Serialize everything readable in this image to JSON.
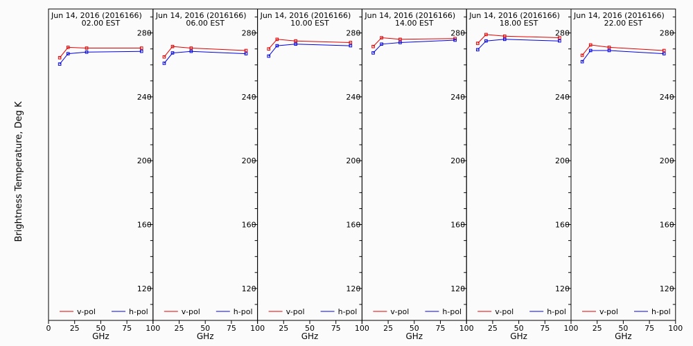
{
  "ylabel": "Brightness Temperature, Deg K",
  "colors": {
    "v_pol": "#e00000",
    "h_pol": "#0000dd",
    "axis": "#000000",
    "background": "#fbfbfb"
  },
  "chart_data": [
    {
      "type": "line",
      "title": "Jun 14, 2016 (2016166)",
      "subtitle": "02.00 EST",
      "xlabel": "GHz",
      "xlim": [
        0,
        100
      ],
      "ylim": [
        100,
        295
      ],
      "xticks": [
        0,
        25,
        50,
        75,
        100
      ],
      "yticks": [
        120,
        160,
        200,
        240,
        280
      ],
      "series": [
        {
          "name": "v-pol",
          "x": [
            10.7,
            18.7,
            36.5,
            89.0
          ],
          "y": [
            264.5,
            271.0,
            270.5,
            270.5
          ]
        },
        {
          "name": "h-pol",
          "x": [
            10.7,
            18.7,
            36.5,
            89.0
          ],
          "y": [
            260.5,
            267.0,
            268.0,
            268.5
          ]
        }
      ]
    },
    {
      "type": "line",
      "title": "Jun 14, 2016 (2016166)",
      "subtitle": "06.00 EST",
      "xlabel": "GHz",
      "xlim": [
        0,
        100
      ],
      "ylim": [
        100,
        295
      ],
      "xticks": [
        25,
        50,
        75,
        100
      ],
      "yticks": [
        120,
        160,
        200,
        240,
        280
      ],
      "series": [
        {
          "name": "v-pol",
          "x": [
            10.7,
            18.7,
            36.5,
            89.0
          ],
          "y": [
            265.0,
            271.5,
            270.5,
            269.0
          ]
        },
        {
          "name": "h-pol",
          "x": [
            10.7,
            18.7,
            36.5,
            89.0
          ],
          "y": [
            261.0,
            267.5,
            268.5,
            267.0
          ]
        }
      ]
    },
    {
      "type": "line",
      "title": "Jun 14, 2016 (2016166)",
      "subtitle": "10.00 EST",
      "xlabel": "GHz",
      "xlim": [
        0,
        100
      ],
      "ylim": [
        100,
        295
      ],
      "xticks": [
        25,
        50,
        75,
        100
      ],
      "yticks": [
        120,
        160,
        200,
        240,
        280
      ],
      "series": [
        {
          "name": "v-pol",
          "x": [
            10.7,
            18.7,
            36.5,
            89.0
          ],
          "y": [
            270.0,
            276.0,
            275.0,
            274.0
          ]
        },
        {
          "name": "h-pol",
          "x": [
            10.7,
            18.7,
            36.5,
            89.0
          ],
          "y": [
            265.5,
            272.0,
            273.0,
            272.0
          ]
        }
      ]
    },
    {
      "type": "line",
      "title": "Jun 14, 2016 (2016166)",
      "subtitle": "14.00 EST",
      "xlabel": "GHz",
      "xlim": [
        0,
        100
      ],
      "ylim": [
        100,
        295
      ],
      "xticks": [
        25,
        50,
        75,
        100
      ],
      "yticks": [
        120,
        160,
        200,
        240,
        280
      ],
      "series": [
        {
          "name": "v-pol",
          "x": [
            10.7,
            18.7,
            36.5,
            89.0
          ],
          "y": [
            271.5,
            277.0,
            276.0,
            276.5
          ]
        },
        {
          "name": "h-pol",
          "x": [
            10.7,
            18.7,
            36.5,
            89.0
          ],
          "y": [
            267.5,
            273.0,
            274.0,
            275.5
          ]
        }
      ]
    },
    {
      "type": "line",
      "title": "Jun 14, 2016 (2016166)",
      "subtitle": "18.00 EST",
      "xlabel": "GHz",
      "xlim": [
        0,
        100
      ],
      "ylim": [
        100,
        295
      ],
      "xticks": [
        25,
        50,
        75,
        100
      ],
      "yticks": [
        120,
        160,
        200,
        240,
        280
      ],
      "series": [
        {
          "name": "v-pol",
          "x": [
            10.7,
            18.7,
            36.5,
            89.0
          ],
          "y": [
            273.5,
            279.0,
            278.0,
            277.0
          ]
        },
        {
          "name": "h-pol",
          "x": [
            10.7,
            18.7,
            36.5,
            89.0
          ],
          "y": [
            269.5,
            275.0,
            276.0,
            275.0
          ]
        }
      ]
    },
    {
      "type": "line",
      "title": "Jun 14, 2016 (2016166)",
      "subtitle": "22.00 EST",
      "xlabel": "GHz",
      "xlim": [
        0,
        100
      ],
      "ylim": [
        100,
        295
      ],
      "xticks": [
        25,
        50,
        75,
        100
      ],
      "yticks": [
        120,
        160,
        200,
        240,
        280
      ],
      "series": [
        {
          "name": "v-pol",
          "x": [
            10.7,
            18.7,
            36.5,
            89.0
          ],
          "y": [
            266.0,
            272.5,
            271.0,
            269.0
          ]
        },
        {
          "name": "h-pol",
          "x": [
            10.7,
            18.7,
            36.5,
            89.0
          ],
          "y": [
            262.0,
            269.0,
            269.0,
            267.0
          ]
        }
      ]
    }
  ]
}
